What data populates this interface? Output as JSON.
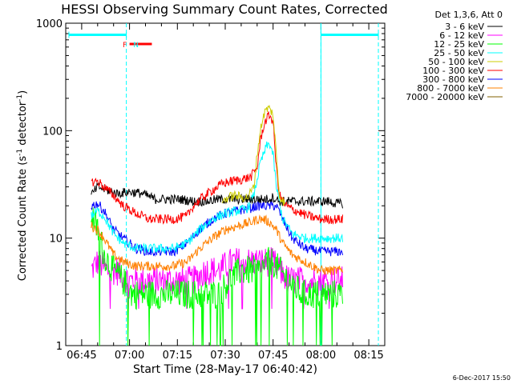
{
  "chart_data": {
    "type": "line",
    "title": "HESSI Observing Summary Count Rates, Corrected",
    "xlabel": "Start Time (28-May-17 06:40:42)",
    "ylabel_main": "Corrected Count Rate (s",
    "ylabel_sup1": "-1",
    "ylabel_mid": " detector",
    "ylabel_sup2": "-1",
    "ylabel_end": ")",
    "y_scale": "log",
    "xlim": [
      40,
      140
    ],
    "ylim": [
      1,
      1000
    ],
    "x_ticks": [
      {
        "t": 45,
        "label": "06:45"
      },
      {
        "t": 60,
        "label": "07:00"
      },
      {
        "t": 75,
        "label": "07:15"
      },
      {
        "t": 90,
        "label": "07:30"
      },
      {
        "t": 105,
        "label": "07:45"
      },
      {
        "t": 120,
        "label": "08:00"
      },
      {
        "t": 135,
        "label": "08:15"
      }
    ],
    "y_ticks": [
      {
        "v": 1,
        "label": "1"
      },
      {
        "v": 10,
        "label": "10"
      },
      {
        "v": 100,
        "label": "100"
      },
      {
        "v": 1000,
        "label": "1000"
      }
    ],
    "legend_header": "Det 1,3,6, Att 0",
    "series": [
      {
        "name": "3 - 6 keV",
        "color": "#000000",
        "points": [
          [
            48,
            25
          ],
          [
            50,
            30
          ],
          [
            53,
            28
          ],
          [
            56,
            26
          ],
          [
            60,
            27
          ],
          [
            64,
            26
          ],
          [
            68,
            23
          ],
          [
            72,
            23
          ],
          [
            76,
            23
          ],
          [
            80,
            22
          ],
          [
            84,
            22
          ],
          [
            88,
            23
          ],
          [
            92,
            23
          ],
          [
            96,
            23
          ],
          [
            100,
            23
          ],
          [
            103,
            23
          ],
          [
            105,
            24
          ],
          [
            107,
            22
          ],
          [
            110,
            22
          ],
          [
            114,
            22
          ],
          [
            118,
            22
          ],
          [
            122,
            22
          ],
          [
            125,
            21
          ],
          [
            127,
            21
          ]
        ]
      },
      {
        "name": "6 - 12 keV",
        "color": "#ff00ff",
        "points": [
          [
            48,
            5
          ],
          [
            50,
            6
          ],
          [
            53,
            5
          ],
          [
            56,
            5
          ],
          [
            60,
            4
          ],
          [
            64,
            4
          ],
          [
            68,
            4
          ],
          [
            72,
            4
          ],
          [
            76,
            4
          ],
          [
            80,
            4
          ],
          [
            84,
            5
          ],
          [
            88,
            5
          ],
          [
            92,
            6
          ],
          [
            96,
            6
          ],
          [
            100,
            6
          ],
          [
            103,
            6
          ],
          [
            105,
            6
          ],
          [
            107,
            5
          ],
          [
            110,
            4
          ],
          [
            114,
            4
          ],
          [
            118,
            4
          ],
          [
            122,
            4
          ],
          [
            125,
            4
          ],
          [
            127,
            4
          ]
        ]
      },
      {
        "name": "12 - 25 keV",
        "color": "#00ff00",
        "points": [
          [
            48,
            17
          ],
          [
            50,
            12
          ],
          [
            52,
            7
          ],
          [
            55,
            5
          ],
          [
            58,
            4
          ],
          [
            61,
            3
          ],
          [
            65,
            3
          ],
          [
            70,
            3
          ],
          [
            75,
            3
          ],
          [
            80,
            3
          ],
          [
            85,
            3
          ],
          [
            88,
            3
          ],
          [
            91,
            4
          ],
          [
            95,
            5
          ],
          [
            98,
            5
          ],
          [
            101,
            5
          ],
          [
            103,
            6
          ],
          [
            105,
            6
          ],
          [
            107,
            5
          ],
          [
            110,
            4
          ],
          [
            114,
            3
          ],
          [
            118,
            3
          ],
          [
            122,
            3
          ],
          [
            125,
            3
          ],
          [
            127,
            3
          ]
        ]
      },
      {
        "name": "25 - 50 keV",
        "color": "#00ffff",
        "points": [
          [
            48,
            16
          ],
          [
            50,
            18
          ],
          [
            52,
            16
          ],
          [
            55,
            11
          ],
          [
            58,
            9
          ],
          [
            62,
            8
          ],
          [
            66,
            8
          ],
          [
            70,
            8
          ],
          [
            74,
            8
          ],
          [
            78,
            9
          ],
          [
            82,
            12
          ],
          [
            86,
            15
          ],
          [
            90,
            17
          ],
          [
            94,
            18
          ],
          [
            97,
            19
          ],
          [
            99,
            25
          ],
          [
            101,
            50
          ],
          [
            103,
            72
          ],
          [
            104,
            75
          ],
          [
            105,
            60
          ],
          [
            106,
            30
          ],
          [
            108,
            15
          ],
          [
            111,
            11
          ],
          [
            115,
            10
          ],
          [
            120,
            10
          ],
          [
            125,
            10
          ],
          [
            127,
            10
          ]
        ]
      },
      {
        "name": "50 - 100 keV",
        "color": "#cccc00",
        "points": [
          [
            89,
            22
          ],
          [
            91,
            24
          ],
          [
            93,
            25
          ],
          [
            95,
            24
          ],
          [
            97,
            24
          ],
          [
            99,
            30
          ],
          [
            100,
            60
          ],
          [
            101,
            100
          ],
          [
            102,
            140
          ],
          [
            103,
            160
          ],
          [
            104,
            160
          ],
          [
            105,
            140
          ],
          [
            106,
            60
          ],
          [
            107,
            25
          ],
          [
            109,
            20
          ]
        ]
      },
      {
        "name": "100 - 300 keV",
        "color": "#ff0000",
        "points": [
          [
            48,
            33
          ],
          [
            50,
            34
          ],
          [
            52,
            30
          ],
          [
            55,
            25
          ],
          [
            58,
            20
          ],
          [
            62,
            17
          ],
          [
            66,
            15
          ],
          [
            70,
            15
          ],
          [
            74,
            15
          ],
          [
            78,
            16
          ],
          [
            80,
            20
          ],
          [
            83,
            24
          ],
          [
            86,
            28
          ],
          [
            89,
            32
          ],
          [
            92,
            34
          ],
          [
            95,
            35
          ],
          [
            98,
            37
          ],
          [
            100,
            45
          ],
          [
            101,
            80
          ],
          [
            102,
            110
          ],
          [
            103,
            130
          ],
          [
            104,
            140
          ],
          [
            105,
            120
          ],
          [
            106,
            45
          ],
          [
            107,
            25
          ],
          [
            109,
            20
          ],
          [
            112,
            18
          ],
          [
            116,
            16
          ],
          [
            120,
            15
          ],
          [
            124,
            15
          ],
          [
            127,
            15
          ]
        ]
      },
      {
        "name": "300 - 800 keV",
        "color": "#0000ff",
        "points": [
          [
            48,
            20
          ],
          [
            50,
            21
          ],
          [
            52,
            18
          ],
          [
            55,
            12
          ],
          [
            58,
            10
          ],
          [
            62,
            8
          ],
          [
            66,
            7.5
          ],
          [
            70,
            7.5
          ],
          [
            74,
            7.5
          ],
          [
            78,
            9
          ],
          [
            82,
            12
          ],
          [
            86,
            15
          ],
          [
            90,
            17
          ],
          [
            94,
            18
          ],
          [
            98,
            19
          ],
          [
            100,
            20
          ],
          [
            102,
            20
          ],
          [
            104,
            20
          ],
          [
            106,
            20
          ],
          [
            108,
            15
          ],
          [
            111,
            10
          ],
          [
            115,
            8
          ],
          [
            120,
            7.5
          ],
          [
            125,
            7.5
          ],
          [
            127,
            7.5
          ]
        ]
      },
      {
        "name": "800 - 7000 keV",
        "color": "#ff8000",
        "points": [
          [
            48,
            13
          ],
          [
            50,
            12
          ],
          [
            52,
            10
          ],
          [
            55,
            7
          ],
          [
            58,
            6
          ],
          [
            62,
            5.5
          ],
          [
            66,
            5.5
          ],
          [
            70,
            5.5
          ],
          [
            74,
            5.5
          ],
          [
            78,
            6
          ],
          [
            82,
            8
          ],
          [
            86,
            10
          ],
          [
            90,
            12
          ],
          [
            94,
            13
          ],
          [
            98,
            14
          ],
          [
            100,
            15
          ],
          [
            102,
            15
          ],
          [
            104,
            14
          ],
          [
            106,
            12
          ],
          [
            108,
            9
          ],
          [
            111,
            7
          ],
          [
            115,
            6
          ],
          [
            120,
            5
          ],
          [
            125,
            5
          ],
          [
            127,
            5
          ]
        ]
      },
      {
        "name": "7000 - 20000 keV",
        "color": "#806000",
        "points": []
      }
    ],
    "attenuator_bars": [
      {
        "start": 41,
        "end": 59,
        "color": "#00ffff"
      },
      {
        "start": 120,
        "end": 138,
        "color": "#00ffff"
      }
    ],
    "flag_labels": [
      {
        "t": 58.5,
        "text": "F",
        "color": "#ff0000"
      },
      {
        "t": 62,
        "text": "N",
        "color": "#00ffff"
      }
    ],
    "flare_bar": {
      "start": 60,
      "end": 67,
      "color": "#ff0000"
    },
    "dashed_lines": [
      59,
      120,
      138
    ],
    "solid_lines": [
      120
    ],
    "footer": "6-Dec-2017 15:50"
  }
}
